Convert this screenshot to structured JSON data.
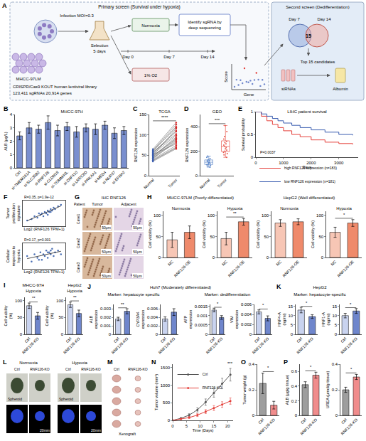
{
  "diagram": {
    "label": "A",
    "primary_title": "Primary screen (Survival under hypoxia)",
    "secondary_title": "Second screen (Dedifferentiation)",
    "cell_line": "MHCC-97LM",
    "infection": "Infection MOI=0.3",
    "selection": "Selection",
    "selection_days": "5 days",
    "library": "CRISPR/Cas9 KOUT human lentiviral library",
    "library_size": "123,411 sgRNAs  20,914 genes",
    "normoxia": "Normoxia",
    "hypoxia": "1% O2",
    "days": [
      "Day 0",
      "Day 7",
      "Day 14"
    ],
    "identify": "Identify sgRNA by deep sequencing",
    "score": "Score",
    "gene": "Gene",
    "venn_left": "Day 7",
    "venn_right": "Day 14",
    "venn_count": "15",
    "top": "Top 15 candidates",
    "sirna": "siRNAs",
    "albumin": "Albumin"
  },
  "images": {
    "G": {
      "label": "G",
      "title": "IHC RNF126",
      "row_header": "Patient",
      "columns": [
        "Tumor",
        "Adjacent"
      ],
      "rows": [
        "Case1",
        "Case2",
        "Case3"
      ],
      "scale": "50μm"
    },
    "L": {
      "label": "L",
      "columns": [
        "Normoxia",
        "Hypoxia"
      ],
      "groups": [
        "Ctrl",
        "RNF126-KO"
      ],
      "row": "Spheroid",
      "scale": "20mm"
    },
    "M": {
      "label": "M",
      "columns": [
        "Ctrl",
        "RNF126-KO"
      ],
      "row": "Xenograft"
    }
  },
  "chart_data": [
    {
      "panel": "B",
      "type": "bar",
      "title": "MHCC-97H",
      "ylabel": "ALB (μg/L)",
      "categories": [
        "Ctrl",
        "si-TMEM161A",
        "si-SLC35B2",
        "si-RNF126",
        "si-CLDN18",
        "si-TOMM40L",
        "si-ZNF410",
        "si-LRRC8D",
        "si-PRKAA1",
        "si-MED4",
        "si-NUP37",
        "si-EFNA2"
      ],
      "values": [
        2.4,
        3.0,
        2.9,
        3.4,
        2.8,
        3.1,
        2.7,
        3.0,
        2.9,
        3.2,
        2.6,
        2.8
      ],
      "errors": [
        0.3,
        0.4,
        0.3,
        0.5,
        0.4,
        0.3,
        0.4,
        0.3,
        0.4,
        0.3,
        0.4,
        0.3
      ],
      "color": "#7a8fcf",
      "ylim": [
        0,
        4
      ],
      "yticks": [
        0,
        1,
        2,
        3,
        4
      ]
    },
    {
      "panel": "C",
      "type": "paired",
      "title": "TCGA",
      "ylabel": "RNF126 expression",
      "color": "#555555",
      "series": [
        {
          "name": "Normal",
          "color": "#3a5db0",
          "values": [
            42,
            55,
            38,
            60,
            47,
            52,
            35,
            65,
            44,
            58,
            50,
            40,
            62,
            46,
            53,
            37,
            57,
            49,
            43,
            61
          ]
        },
        {
          "name": "Tumor",
          "color": "#d62728",
          "values": [
            85,
            110,
            70,
            120,
            95,
            78,
            66,
            130,
            88,
            102,
            115,
            74,
            125,
            92,
            99,
            68,
            108,
            90,
            82,
            118
          ]
        }
      ],
      "ylim": [
        0,
        150
      ],
      "yticks": [
        0,
        50,
        100,
        150
      ],
      "significance": "****"
    },
    {
      "panel": "D",
      "type": "strip",
      "title": "GEO",
      "ylabel": "RNF126 expression",
      "series": [
        {
          "name": "Normal",
          "color": "#5b86c9",
          "values": [
            80,
            120,
            95,
            150,
            110,
            70,
            130,
            100,
            90,
            140,
            115,
            85,
            125,
            105,
            160
          ]
        },
        {
          "name": "Tumor",
          "color": "#e8584d",
          "values": [
            180,
            250,
            210,
            320,
            150,
            280,
            230,
            360,
            200,
            260,
            190,
            300,
            240,
            410,
            220,
            170,
            270
          ]
        }
      ],
      "ylim": [
        0,
        500
      ],
      "yticks": [
        0,
        200,
        400
      ],
      "significance": "***"
    },
    {
      "panel": "E",
      "type": "km",
      "title": "LIHC patient survival",
      "xlabel": "Days",
      "ylabel": "Survival probability",
      "series": [
        {
          "name": "high RNF126 expression (n=183)",
          "color": "#e4403b",
          "x": [
            0,
            200,
            400,
            600,
            800,
            1000,
            1300,
            1600,
            2000,
            2500,
            3000,
            3500
          ],
          "values": [
            1,
            0.9,
            0.8,
            0.72,
            0.65,
            0.58,
            0.5,
            0.45,
            0.38,
            0.33,
            0.3,
            0.28
          ]
        },
        {
          "name": "low RNF126 expression (n=181)",
          "color": "#3a5db0",
          "x": [
            0,
            200,
            400,
            600,
            800,
            1000,
            1300,
            1600,
            2000,
            2500,
            3000,
            3500
          ],
          "values": [
            1,
            0.95,
            0.9,
            0.85,
            0.8,
            0.75,
            0.7,
            0.65,
            0.6,
            0.55,
            0.5,
            0.48
          ]
        }
      ],
      "xlim": [
        0,
        3700
      ],
      "xticks": [
        0,
        1000,
        2000,
        3000
      ],
      "ylim": [
        0,
        1
      ],
      "yticks": [
        0,
        0.5,
        1
      ],
      "note": "P=0.0037",
      "legend": "bottom"
    },
    {
      "panel": "F",
      "type": "scatter_fit",
      "note": "R=0.35, p=1.9e-12",
      "ylabel": "Tumor proliferation signature",
      "xlabel": "Log2 (RNF126 TPM+1)",
      "color": "#4a6fb5",
      "x": [
        2.1,
        2.4,
        2.6,
        2.8,
        3.0,
        3.1,
        3.2,
        3.3,
        3.4,
        3.5,
        3.6,
        3.7,
        3.8,
        3.9,
        4.0,
        4.2,
        4.4,
        2.9,
        3.5,
        3.7
      ],
      "values": [
        -0.4,
        -0.3,
        -0.1,
        -0.2,
        0.0,
        0.1,
        -0.1,
        0.2,
        0.1,
        0.3,
        0.2,
        0.4,
        0.3,
        0.5,
        0.4,
        0.6,
        0.7,
        0.1,
        0.0,
        0.2
      ],
      "xlim": [
        1.8,
        4.7
      ],
      "ylim": [
        -0.8,
        1.0
      ],
      "tick_labels": false
    },
    {
      "type": "scatter_fit",
      "note": "R=0.17, p=0.001",
      "ylabel": "Cellular response to hypoxia",
      "xlabel": "Log2 (RNF126 TPM+1)",
      "color": "#4a6fb5",
      "x": [
        2.1,
        2.4,
        2.6,
        2.8,
        3.0,
        3.1,
        3.2,
        3.3,
        3.4,
        3.5,
        3.6,
        3.7,
        3.8,
        3.9,
        4.0,
        4.2,
        4.4,
        2.9,
        3.5,
        3.7
      ],
      "values": [
        0.1,
        -0.2,
        0.2,
        0.0,
        0.3,
        -0.1,
        0.2,
        0.1,
        0.4,
        0.0,
        0.3,
        0.2,
        0.5,
        0.1,
        0.3,
        0.4,
        0.2,
        -0.1,
        0.3,
        0.4
      ],
      "xlim": [
        1.8,
        4.7
      ],
      "ylim": [
        -0.6,
        0.8
      ],
      "tick_labels": false
    },
    {
      "panel": "H",
      "type": "bar",
      "group_title": "MHCC-97LM (Poorly differentiated)",
      "title": "Normoxia",
      "ylabel": "Cell viability (%)",
      "categories": [
        "NC",
        "RNF126-OE"
      ],
      "values": [
        42,
        60
      ],
      "errors": [
        18,
        15
      ],
      "colors": [
        "#f7c6b5",
        "#ef8a6b"
      ],
      "ylim": [
        0,
        110
      ],
      "yticks": [
        0,
        50,
        100
      ]
    },
    {
      "type": "bar",
      "title": "Hypoxia",
      "ylabel": "Cell viability (%)",
      "categories": [
        "NC",
        "RNF126-OE"
      ],
      "values": [
        45,
        85
      ],
      "errors": [
        15,
        8
      ],
      "colors": [
        "#f7c6b5",
        "#ef8a6b"
      ],
      "ylim": [
        0,
        110
      ],
      "yticks": [
        0,
        50,
        100
      ],
      "significance": "**"
    },
    {
      "type": "bar",
      "group_title": "HepG2 (Well differentiated)",
      "title": "Normoxia",
      "ylabel": "Cell viability (%)",
      "categories": [
        "NC",
        "RNF126-OE"
      ],
      "values": [
        82,
        85
      ],
      "errors": [
        8,
        7
      ],
      "colors": [
        "#f7c6b5",
        "#ef8a6b"
      ],
      "ylim": [
        0,
        110
      ],
      "yticks": [
        0,
        50,
        100
      ]
    },
    {
      "type": "bar",
      "title": "Hypoxia",
      "ylabel": "Cell viability (%)",
      "categories": [
        "NC",
        "RNF126-OE"
      ],
      "values": [
        60,
        82
      ],
      "errors": [
        12,
        8
      ],
      "colors": [
        "#f7c6b5",
        "#ef8a6b"
      ],
      "ylim": [
        0,
        110
      ],
      "yticks": [
        0,
        50,
        100
      ],
      "significance": "*"
    },
    {
      "panel": "I",
      "type": "bar",
      "title": "MHCC-97H",
      "subtitle": "Hypoxia",
      "ylabel": "Cell viability (%)",
      "categories": [
        "Ctrl",
        "RNF126-KO"
      ],
      "values": [
        85,
        55
      ],
      "errors": [
        8,
        10
      ],
      "colors": [
        "#c9d3ef",
        "#6f86cc"
      ],
      "ylim": [
        0,
        110
      ],
      "yticks": [
        0,
        50,
        100
      ],
      "significance": "**"
    },
    {
      "type": "bar",
      "title": "HepG2",
      "subtitle": "Hypoxia",
      "ylabel": "Cell viability (%)",
      "categories": [
        "Ctrl",
        "RNF126-KO"
      ],
      "values": [
        88,
        62
      ],
      "errors": [
        8,
        10
      ],
      "colors": [
        "#c9d3ef",
        "#6f86cc"
      ],
      "ylim": [
        0,
        110
      ],
      "yticks": [
        0,
        50,
        100
      ],
      "significance": "**"
    },
    {
      "panel": "J",
      "type": "bar",
      "group_title": "Huh7 (Moderately differentiated)",
      "subtitle": "Marker: hepatocyte specific",
      "ylabel": "ALB expression",
      "categories": [
        "Ctrl",
        "RNF126-KO"
      ],
      "values": [
        0.0018,
        0.0027
      ],
      "errors": [
        0.0002,
        0.0003
      ],
      "colors": [
        "#c9d3ef",
        "#6f86cc"
      ],
      "ylim": [
        0,
        0.0035
      ],
      "yticks": [
        0,
        0.001,
        0.002,
        0.003
      ],
      "significance": "**"
    },
    {
      "type": "bar",
      "ylabel": "CYP3A4 expression",
      "categories": [
        "Ctrl",
        "RNF126-KO"
      ],
      "values": [
        0.0036,
        0.0052
      ],
      "errors": [
        0.0005,
        0.0008
      ],
      "colors": [
        "#c9d3ef",
        "#6f86cc"
      ],
      "ylim": [
        0,
        0.007
      ],
      "yticks": [
        0,
        0.002,
        0.004,
        0.006
      ]
    },
    {
      "type": "bar",
      "subtitle": "Marker: dedifferentiation",
      "ylabel": "AFP expression",
      "categories": [
        "Ctrl",
        "RNF126-KO"
      ],
      "values": [
        0.0013,
        0.0009
      ],
      "errors": [
        0.0001,
        0.0001
      ],
      "colors": [
        "#c9d3ef",
        "#6f86cc"
      ],
      "ylim": [
        0,
        0.0016
      ],
      "yticks": [
        0,
        0.0005,
        0.001,
        0.0015
      ],
      "significance": "*"
    },
    {
      "type": "bar",
      "ylabel": "VIM expression",
      "categories": [
        "Ctrl",
        "RNF126-KO"
      ],
      "values": [
        0.0045,
        0.0032
      ],
      "errors": [
        0.0004,
        0.0005
      ],
      "colors": [
        "#c9d3ef",
        "#6f86cc"
      ],
      "ylim": [
        0,
        0.006
      ],
      "yticks": [
        0,
        0.002,
        0.004,
        0.006
      ],
      "significance": "*"
    },
    {
      "panel": "K",
      "type": "bar",
      "group_title": "HepG2",
      "subtitle": "Marker: hepatocyte-specific",
      "ylabel": "HNF4-A (ng/ml)",
      "categories": [
        "Ctrl",
        "RNF126-KO"
      ],
      "values": [
        13,
        9.5
      ],
      "errors": [
        1.5,
        1
      ],
      "colors": [
        "#c9d3ef",
        "#6f86cc"
      ],
      "ylim": [
        0,
        16
      ],
      "yticks": [
        0,
        5,
        10,
        15
      ],
      "significance": "*"
    },
    {
      "type": "bar",
      "ylabel": "HNF1-A (ng/ml)",
      "categories": [
        "Ctrl",
        "RNF126-KO"
      ],
      "values": [
        10,
        12.5
      ],
      "errors": [
        1.2,
        1.3
      ],
      "colors": [
        "#c9d3ef",
        "#6f86cc"
      ],
      "ylim": [
        0,
        16
      ],
      "yticks": [
        0,
        5,
        10,
        15
      ],
      "significance": "*"
    },
    {
      "panel": "N",
      "type": "line",
      "xlabel": "Time (Days)",
      "ylabel": "Tumor volume (mm³)",
      "x": [
        0,
        3,
        6,
        9,
        12,
        15,
        18,
        21
      ],
      "series": [
        {
          "name": "Ctrl",
          "color": "#555555",
          "values": [
            0,
            60,
            150,
            300,
            520,
            780,
            1050,
            1300
          ],
          "errors": [
            0,
            20,
            40,
            60,
            90,
            120,
            150,
            180
          ]
        },
        {
          "name": "RNF126-KO",
          "color": "#e4403b",
          "values": [
            0,
            40,
            80,
            150,
            250,
            350,
            450,
            550
          ],
          "errors": [
            0,
            15,
            25,
            40,
            55,
            70,
            80,
            90
          ]
        }
      ],
      "xlim": [
        0,
        22
      ],
      "xticks": [
        0,
        5,
        10,
        15,
        20
      ],
      "ylim": [
        0,
        1600
      ],
      "yticks": [
        0,
        500,
        1000,
        1500
      ],
      "legend": "top-left",
      "significance": "***"
    },
    {
      "panel": "O",
      "type": "bar",
      "ylabel": "Tumor weight (g)",
      "categories": [
        "Ctrl",
        "RNF126-KO"
      ],
      "values": [
        0.25,
        0.08
      ],
      "errors": [
        0.08,
        0.03
      ],
      "colors": [
        "#9e9e9e",
        "#f08c8c"
      ],
      "ylim": [
        0,
        0.4
      ],
      "yticks": [
        0,
        0.2,
        0.4
      ],
      "significance": "*"
    },
    {
      "panel": "P",
      "type": "bar",
      "ylabel": "ALB (μg/g tissue)",
      "categories": [
        "Ctrl",
        "RNF126-KO"
      ],
      "values": [
        0.42,
        0.55
      ],
      "errors": [
        0.04,
        0.04
      ],
      "colors": [
        "#9e9e9e",
        "#f08c8c"
      ],
      "ylim": [
        0,
        0.7
      ],
      "yticks": [
        0,
        0.2,
        0.4,
        0.6
      ],
      "significance": "*"
    },
    {
      "type": "bar",
      "ylabel": "UREA (μmol/g tissue)",
      "categories": [
        "Ctrl",
        "RNF126-KO"
      ],
      "values": [
        0.2,
        0.3
      ],
      "errors": [
        0.02,
        0.02
      ],
      "colors": [
        "#9e9e9e",
        "#f08c8c"
      ],
      "ylim": [
        0,
        0.4
      ],
      "yticks": [
        0,
        0.2,
        0.4
      ],
      "significance": "*"
    }
  ]
}
